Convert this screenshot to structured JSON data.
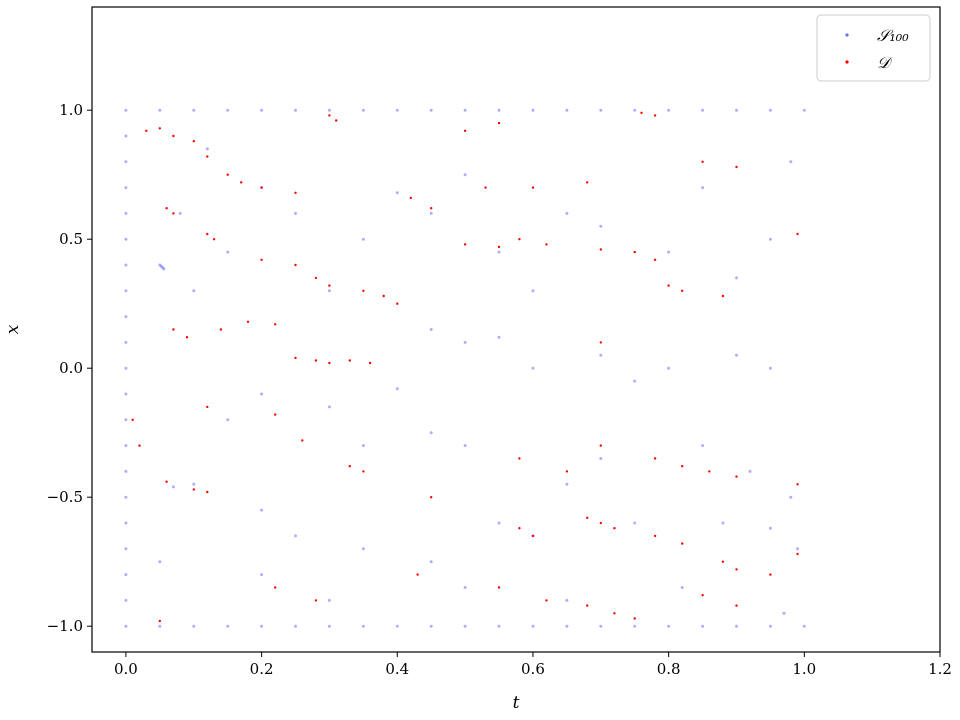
{
  "chart_data": {
    "type": "scatter",
    "xlabel": "t",
    "ylabel": "x",
    "xlim": [
      -0.05,
      1.2
    ],
    "ylim": [
      -1.1,
      1.4
    ],
    "xticks": [
      0.0,
      0.2,
      0.4,
      0.6,
      0.8,
      1.0,
      1.2
    ],
    "yticks": [
      -1.0,
      -0.5,
      0.0,
      0.5,
      1.0
    ],
    "xtick_labels": [
      "0.0",
      "0.2",
      "0.4",
      "0.6",
      "0.8",
      "1.0",
      "1.2"
    ],
    "ytick_labels": [
      "−1.0",
      "−0.5",
      "0.0",
      "0.5",
      "1.0"
    ],
    "grid": false,
    "legend": {
      "placement": "top-right",
      "entries": [
        {
          "label": "𝒮₁₀₀",
          "color": "#6b6bff"
        },
        {
          "label": "𝒟",
          "color": "#ff0000"
        }
      ]
    },
    "series": [
      {
        "name": "𝒮₁₀₀",
        "color": "#6b6bff",
        "points": [
          [
            0.0,
            -1.0
          ],
          [
            0.0,
            -0.9
          ],
          [
            0.0,
            -0.8
          ],
          [
            0.0,
            -0.7
          ],
          [
            0.0,
            -0.6
          ],
          [
            0.0,
            -0.5
          ],
          [
            0.0,
            -0.4
          ],
          [
            0.0,
            -0.3
          ],
          [
            0.0,
            -0.2
          ],
          [
            0.0,
            -0.1
          ],
          [
            0.0,
            0.0
          ],
          [
            0.0,
            0.1
          ],
          [
            0.0,
            0.2
          ],
          [
            0.0,
            0.3
          ],
          [
            0.0,
            0.4
          ],
          [
            0.0,
            0.5
          ],
          [
            0.0,
            0.6
          ],
          [
            0.0,
            0.7
          ],
          [
            0.0,
            0.8
          ],
          [
            0.0,
            0.9
          ],
          [
            0.0,
            1.0
          ],
          [
            0.05,
            1.0
          ],
          [
            0.1,
            1.0
          ],
          [
            0.15,
            1.0
          ],
          [
            0.2,
            1.0
          ],
          [
            0.25,
            1.0
          ],
          [
            0.3,
            1.0
          ],
          [
            0.35,
            1.0
          ],
          [
            0.4,
            1.0
          ],
          [
            0.45,
            1.0
          ],
          [
            0.5,
            1.0
          ],
          [
            0.55,
            1.0
          ],
          [
            0.6,
            1.0
          ],
          [
            0.65,
            1.0
          ],
          [
            0.7,
            1.0
          ],
          [
            0.75,
            1.0
          ],
          [
            0.8,
            1.0
          ],
          [
            0.85,
            1.0
          ],
          [
            0.9,
            1.0
          ],
          [
            0.95,
            1.0
          ],
          [
            1.0,
            1.0
          ],
          [
            0.05,
            -1.0
          ],
          [
            0.1,
            -1.0
          ],
          [
            0.15,
            -1.0
          ],
          [
            0.2,
            -1.0
          ],
          [
            0.25,
            -1.0
          ],
          [
            0.3,
            -1.0
          ],
          [
            0.35,
            -1.0
          ],
          [
            0.4,
            -1.0
          ],
          [
            0.45,
            -1.0
          ],
          [
            0.5,
            -1.0
          ],
          [
            0.55,
            -1.0
          ],
          [
            0.6,
            -1.0
          ],
          [
            0.65,
            -1.0
          ],
          [
            0.7,
            -1.0
          ],
          [
            0.75,
            -1.0
          ],
          [
            0.8,
            -1.0
          ],
          [
            0.85,
            -1.0
          ],
          [
            0.9,
            -1.0
          ],
          [
            0.95,
            -1.0
          ],
          [
            1.0,
            -1.0
          ],
          [
            0.05,
            0.4
          ],
          [
            0.052,
            0.395
          ],
          [
            0.054,
            0.39
          ],
          [
            0.056,
            0.385
          ],
          [
            0.12,
            0.85
          ],
          [
            0.2,
            0.7
          ],
          [
            0.25,
            0.6
          ],
          [
            0.4,
            0.68
          ],
          [
            0.45,
            0.6
          ],
          [
            0.5,
            0.75
          ],
          [
            0.55,
            0.45
          ],
          [
            0.6,
            0.3
          ],
          [
            0.65,
            0.6
          ],
          [
            0.7,
            0.55
          ],
          [
            0.8,
            0.45
          ],
          [
            0.85,
            0.7
          ],
          [
            0.9,
            0.35
          ],
          [
            0.95,
            0.5
          ],
          [
            0.98,
            0.8
          ],
          [
            0.35,
            0.5
          ],
          [
            0.3,
            0.3
          ],
          [
            0.15,
            0.45
          ],
          [
            0.1,
            0.3
          ],
          [
            0.08,
            0.6
          ],
          [
            0.55,
            0.12
          ],
          [
            0.5,
            0.1
          ],
          [
            0.45,
            0.15
          ],
          [
            0.6,
            0.0
          ],
          [
            0.7,
            0.05
          ],
          [
            0.75,
            -0.05
          ],
          [
            0.8,
            0.0
          ],
          [
            0.9,
            0.05
          ],
          [
            0.95,
            0.0
          ],
          [
            0.4,
            -0.08
          ],
          [
            0.2,
            -0.1
          ],
          [
            0.15,
            -0.2
          ],
          [
            0.3,
            -0.15
          ],
          [
            0.35,
            -0.3
          ],
          [
            0.45,
            -0.25
          ],
          [
            0.5,
            -0.3
          ],
          [
            0.65,
            -0.45
          ],
          [
            0.7,
            -0.35
          ],
          [
            0.85,
            -0.3
          ],
          [
            0.92,
            -0.4
          ],
          [
            0.98,
            -0.5
          ],
          [
            0.1,
            -0.45
          ],
          [
            0.07,
            -0.46
          ],
          [
            0.2,
            -0.55
          ],
          [
            0.25,
            -0.65
          ],
          [
            0.35,
            -0.7
          ],
          [
            0.45,
            -0.75
          ],
          [
            0.55,
            -0.6
          ],
          [
            0.6,
            -0.65
          ],
          [
            0.75,
            -0.6
          ],
          [
            0.88,
            -0.6
          ],
          [
            0.95,
            -0.62
          ],
          [
            0.99,
            -0.7
          ],
          [
            0.05,
            -0.75
          ],
          [
            0.2,
            -0.8
          ],
          [
            0.3,
            -0.9
          ],
          [
            0.5,
            -0.85
          ],
          [
            0.65,
            -0.9
          ],
          [
            0.82,
            -0.85
          ],
          [
            0.97,
            -0.95
          ]
        ]
      },
      {
        "name": "𝒟",
        "color": "#ff0000",
        "points": [
          [
            0.03,
            0.92
          ],
          [
            0.05,
            0.93
          ],
          [
            0.07,
            0.9
          ],
          [
            0.1,
            0.88
          ],
          [
            0.12,
            0.82
          ],
          [
            0.3,
            0.98
          ],
          [
            0.31,
            0.96
          ],
          [
            0.5,
            0.92
          ],
          [
            0.55,
            0.95
          ],
          [
            0.76,
            0.99
          ],
          [
            0.78,
            0.98
          ],
          [
            0.15,
            0.75
          ],
          [
            0.17,
            0.72
          ],
          [
            0.2,
            0.7
          ],
          [
            0.25,
            0.68
          ],
          [
            0.45,
            0.62
          ],
          [
            0.42,
            0.66
          ],
          [
            0.53,
            0.7
          ],
          [
            0.6,
            0.7
          ],
          [
            0.68,
            0.72
          ],
          [
            0.85,
            0.8
          ],
          [
            0.9,
            0.78
          ],
          [
            0.06,
            0.62
          ],
          [
            0.07,
            0.6
          ],
          [
            0.12,
            0.52
          ],
          [
            0.13,
            0.5
          ],
          [
            0.2,
            0.42
          ],
          [
            0.25,
            0.4
          ],
          [
            0.28,
            0.35
          ],
          [
            0.3,
            0.32
          ],
          [
            0.35,
            0.3
          ],
          [
            0.38,
            0.28
          ],
          [
            0.4,
            0.25
          ],
          [
            0.5,
            0.48
          ],
          [
            0.55,
            0.47
          ],
          [
            0.58,
            0.5
          ],
          [
            0.62,
            0.48
          ],
          [
            0.7,
            0.46
          ],
          [
            0.75,
            0.45
          ],
          [
            0.78,
            0.42
          ],
          [
            0.8,
            0.32
          ],
          [
            0.82,
            0.3
          ],
          [
            0.88,
            0.28
          ],
          [
            0.99,
            0.52
          ],
          [
            0.07,
            0.15
          ],
          [
            0.09,
            0.12
          ],
          [
            0.14,
            0.15
          ],
          [
            0.18,
            0.18
          ],
          [
            0.22,
            0.17
          ],
          [
            0.25,
            0.04
          ],
          [
            0.28,
            0.03
          ],
          [
            0.3,
            0.02
          ],
          [
            0.33,
            0.03
          ],
          [
            0.36,
            0.02
          ],
          [
            0.7,
            0.1
          ],
          [
            0.01,
            -0.2
          ],
          [
            0.02,
            -0.3
          ],
          [
            0.12,
            -0.15
          ],
          [
            0.22,
            -0.18
          ],
          [
            0.26,
            -0.28
          ],
          [
            0.33,
            -0.38
          ],
          [
            0.35,
            -0.4
          ],
          [
            0.45,
            -0.5
          ],
          [
            0.58,
            -0.35
          ],
          [
            0.65,
            -0.4
          ],
          [
            0.7,
            -0.3
          ],
          [
            0.78,
            -0.35
          ],
          [
            0.82,
            -0.38
          ],
          [
            0.86,
            -0.4
          ],
          [
            0.9,
            -0.42
          ],
          [
            0.99,
            -0.45
          ],
          [
            0.06,
            -0.44
          ],
          [
            0.1,
            -0.47
          ],
          [
            0.12,
            -0.48
          ],
          [
            0.58,
            -0.62
          ],
          [
            0.6,
            -0.65
          ],
          [
            0.68,
            -0.58
          ],
          [
            0.7,
            -0.6
          ],
          [
            0.72,
            -0.62
          ],
          [
            0.78,
            -0.65
          ],
          [
            0.82,
            -0.68
          ],
          [
            0.88,
            -0.75
          ],
          [
            0.9,
            -0.78
          ],
          [
            0.95,
            -0.8
          ],
          [
            0.99,
            -0.72
          ],
          [
            0.22,
            -0.85
          ],
          [
            0.28,
            -0.9
          ],
          [
            0.43,
            -0.8
          ],
          [
            0.55,
            -0.85
          ],
          [
            0.62,
            -0.9
          ],
          [
            0.68,
            -0.92
          ],
          [
            0.72,
            -0.95
          ],
          [
            0.75,
            -0.97
          ],
          [
            0.85,
            -0.88
          ],
          [
            0.9,
            -0.92
          ],
          [
            0.05,
            -0.98
          ]
        ]
      }
    ]
  }
}
